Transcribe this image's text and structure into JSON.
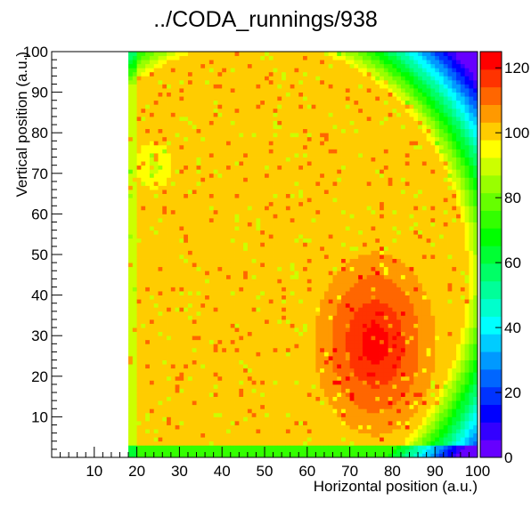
{
  "chart_data": {
    "type": "heatmap",
    "title": "../CODA_runnings/938",
    "xlabel": "Horizontal position (a.u.)",
    "ylabel": "Vertical position (a.u.)",
    "xlim": [
      0,
      100
    ],
    "ylim": [
      0,
      100
    ],
    "zlim": [
      0,
      125
    ],
    "x_ticks": [
      "10",
      "20",
      "30",
      "40",
      "50",
      "60",
      "70",
      "80",
      "90",
      "100"
    ],
    "y_ticks": [
      "10",
      "20",
      "30",
      "40",
      "50",
      "60",
      "70",
      "80",
      "90",
      "100"
    ],
    "z_ticks": [
      "0",
      "20",
      "40",
      "60",
      "80",
      "100",
      "120"
    ],
    "x_tick_values": [
      10,
      20,
      30,
      40,
      50,
      60,
      70,
      80,
      90,
      100
    ],
    "y_tick_values": [
      10,
      20,
      30,
      40,
      50,
      60,
      70,
      80,
      90,
      100
    ],
    "z_tick_values": [
      0,
      20,
      40,
      60,
      80,
      100,
      120
    ],
    "empty_region_x": [
      0,
      18
    ],
    "palette": [
      "#6600ff",
      "#3300ff",
      "#0000ff",
      "#0033ff",
      "#0066ff",
      "#0099ff",
      "#00ccff",
      "#00ffff",
      "#00ffcc",
      "#00ff99",
      "#00ff66",
      "#00ff33",
      "#00ff00",
      "#33ff00",
      "#66ff00",
      "#99ff00",
      "#ccff00",
      "#ffff00",
      "#ffcc00",
      "#ff9900",
      "#ff6600",
      "#ff3300",
      "#ff0000"
    ],
    "grid": false
  }
}
